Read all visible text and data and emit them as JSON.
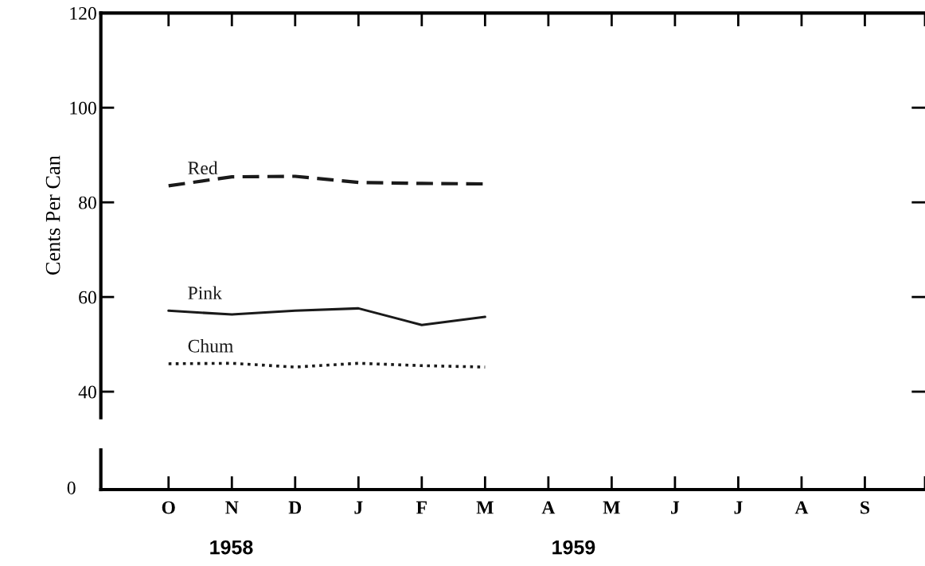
{
  "chart_data": {
    "type": "line",
    "ylabel": "Cents Per Can",
    "categories": [
      "O",
      "N",
      "D",
      "J",
      "F",
      "M",
      "A",
      "M",
      "J",
      "J",
      "A",
      "S"
    ],
    "ylim": [
      34.5,
      120
    ],
    "yticks": [
      40,
      60,
      80,
      100,
      120
    ],
    "legend": false,
    "grid": false,
    "annotations": [
      "0",
      "1958",
      "1959"
    ],
    "series": [
      {
        "name": "Red",
        "color": "#1a1a1a",
        "line_style": "dashed",
        "values": [
          83.5,
          85.4,
          85.5,
          84.2,
          84.0,
          83.9,
          null,
          null,
          null,
          null,
          null,
          null
        ]
      },
      {
        "name": "Pink",
        "color": "#1a1a1a",
        "line_style": "solid",
        "values": [
          57.1,
          56.3,
          57.1,
          57.6,
          54.1,
          55.8,
          null,
          null,
          null,
          null,
          null,
          null
        ]
      },
      {
        "name": "Chum",
        "color": "#1a1a1a",
        "line_style": "dotted",
        "values": [
          45.9,
          46.0,
          45.2,
          46.0,
          45.5,
          45.2,
          null,
          null,
          null,
          null,
          null,
          null
        ]
      }
    ]
  }
}
